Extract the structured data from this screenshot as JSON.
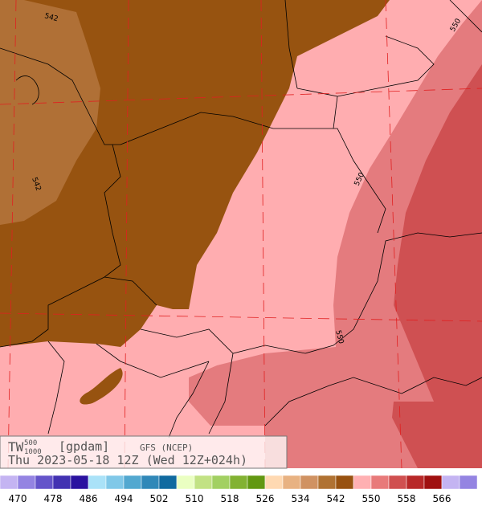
{
  "header": {
    "field": "TW",
    "top_level": "500",
    "bottom_level": "1000",
    "unit": "[gpdam]",
    "model": "GFS (NCEP)",
    "valid": "Thu 2023-05-18 12Z (Wed 12Z+024h)"
  },
  "contour_labels": [
    "542",
    "542",
    "550",
    "550",
    "550"
  ],
  "colorbar": {
    "labels": [
      470,
      478,
      486,
      494,
      502,
      510,
      518,
      526,
      534,
      542,
      550,
      558,
      566
    ],
    "colors": [
      "#c4b4f2",
      "#9484e2",
      "#6454ca",
      "#4232b2",
      "#2a12a0",
      "#aae2f8",
      "#80c8e8",
      "#52a8d0",
      "#3088b8",
      "#106aa0",
      "#eaffc2",
      "#c2e284",
      "#a2d062",
      "#82b232",
      "#629812",
      "#ffd9b2",
      "#e8b282",
      "#d09262",
      "#b07232",
      "#985210",
      "#ffb0b2",
      "#e87a7a",
      "#d05050",
      "#b82828",
      "#a01010",
      "#c4b4f2",
      "#9484e2"
    ]
  }
}
